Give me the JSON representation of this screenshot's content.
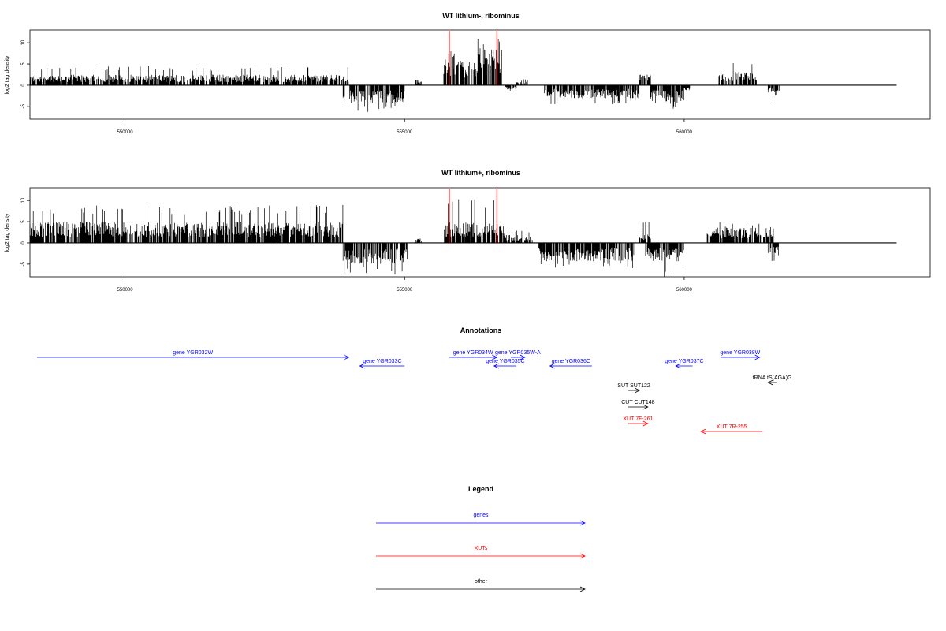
{
  "colors": {
    "gene": "#0000ff",
    "xut": "#ff0000",
    "other": "#000000",
    "marker": "#ff0000"
  },
  "chart_data": [
    {
      "type": "bar",
      "title": "WT lithium-, ribominus",
      "ylabel": "log2 tag density",
      "ylim": [
        -8,
        13
      ],
      "yticks": [
        -5,
        0,
        5,
        10
      ],
      "xlim": [
        548300,
        564400
      ],
      "xticks": [
        550000,
        555000,
        560000
      ],
      "xtick_labels": [
        "550000",
        "555000",
        "560000"
      ],
      "grid": false,
      "baseline_extent": [
        548300,
        563800
      ],
      "marker_positions": [
        555800,
        556650
      ],
      "segments": [
        {
          "start": 548300,
          "end": 554000,
          "strand": "+",
          "typical": 2.0,
          "peak": 4.5
        },
        {
          "start": 553900,
          "end": 555000,
          "strand": "-",
          "typical": -3.5,
          "peak": -6.5
        },
        {
          "start": 555200,
          "end": 555300,
          "strand": "+",
          "typical": 1.0,
          "peak": 1.5
        },
        {
          "start": 555700,
          "end": 555900,
          "strand": "+",
          "typical": 6.0,
          "peak": 10.0
        },
        {
          "start": 555900,
          "end": 556300,
          "strand": "+",
          "typical": 5.0,
          "peak": 9.0
        },
        {
          "start": 556300,
          "end": 556750,
          "strand": "+",
          "typical": 7.0,
          "peak": 11.0
        },
        {
          "start": 556800,
          "end": 557000,
          "strand": "-",
          "typical": -0.8,
          "peak": -1.5
        },
        {
          "start": 557000,
          "end": 557200,
          "strand": "+",
          "typical": 1.0,
          "peak": 1.5
        },
        {
          "start": 557500,
          "end": 558700,
          "strand": "-",
          "typical": -2.5,
          "peak": -4.5
        },
        {
          "start": 558700,
          "end": 559200,
          "strand": "-",
          "typical": -2.5,
          "peak": -4.5
        },
        {
          "start": 559200,
          "end": 559400,
          "strand": "+",
          "typical": 2.0,
          "peak": 3.0
        },
        {
          "start": 559400,
          "end": 560000,
          "strand": "-",
          "typical": -3.5,
          "peak": -6.5
        },
        {
          "start": 560000,
          "end": 560100,
          "strand": "-",
          "typical": -1.0,
          "peak": -2.0
        },
        {
          "start": 560600,
          "end": 561300,
          "strand": "+",
          "typical": 2.5,
          "peak": 5.5
        },
        {
          "start": 561500,
          "end": 561700,
          "strand": "-",
          "typical": -2.0,
          "peak": -4.5
        }
      ]
    },
    {
      "type": "bar",
      "title": "WT lithium+, ribominus",
      "ylabel": "log2 tag density",
      "ylim": [
        -8,
        13
      ],
      "yticks": [
        -5,
        0,
        5,
        10
      ],
      "xlim": [
        548300,
        564400
      ],
      "xticks": [
        550000,
        555000,
        560000
      ],
      "xtick_labels": [
        "550000",
        "555000",
        "560000"
      ],
      "grid": false,
      "baseline_extent": [
        548300,
        563800
      ],
      "marker_positions": [
        555800,
        556650
      ],
      "segments": [
        {
          "start": 548300,
          "end": 553900,
          "strand": "+",
          "typical": 4.0,
          "peak": 9.0
        },
        {
          "start": 553900,
          "end": 555050,
          "strand": "-",
          "typical": -4.0,
          "peak": -7.5
        },
        {
          "start": 555200,
          "end": 555300,
          "strand": "+",
          "typical": 1.0,
          "peak": 2.0
        },
        {
          "start": 555700,
          "end": 556800,
          "strand": "+",
          "typical": 4.0,
          "peak": 11.0
        },
        {
          "start": 556800,
          "end": 557300,
          "strand": "+",
          "typical": 1.5,
          "peak": 3.0
        },
        {
          "start": 557400,
          "end": 559100,
          "strand": "-",
          "typical": -3.5,
          "peak": -6.0
        },
        {
          "start": 559200,
          "end": 559400,
          "strand": "+",
          "typical": 2.0,
          "peak": 5.0
        },
        {
          "start": 559300,
          "end": 560000,
          "strand": "-",
          "typical": -3.5,
          "peak": -8.0
        },
        {
          "start": 560400,
          "end": 561600,
          "strand": "+",
          "typical": 3.0,
          "peak": 5.0
        },
        {
          "start": 561500,
          "end": 561700,
          "strand": "-",
          "typical": -2.5,
          "peak": -5.0
        }
      ]
    }
  ],
  "annotations": {
    "title": "Annotations",
    "xlim": [
      548300,
      564400
    ],
    "items": [
      {
        "label": "gene YGR032W",
        "kind": "gene",
        "start": 548300,
        "end": 554000,
        "strand": "+",
        "row": 0
      },
      {
        "label": "gene YGR033C",
        "kind": "gene",
        "start": 554200,
        "end": 555000,
        "strand": "-",
        "row": 1
      },
      {
        "label": "gene YGR034W",
        "kind": "gene",
        "start": 555800,
        "end": 556650,
        "strand": "+",
        "row": 0
      },
      {
        "label": "gene YGR035W-A",
        "kind": "gene",
        "start": 556900,
        "end": 557150,
        "strand": "+",
        "row": 0
      },
      {
        "label": "gene YGR035C",
        "kind": "gene",
        "start": 556600,
        "end": 557000,
        "strand": "-",
        "row": 1
      },
      {
        "label": "gene YGR036C",
        "kind": "gene",
        "start": 557600,
        "end": 558350,
        "strand": "-",
        "row": 1
      },
      {
        "label": "gene YGR037C",
        "kind": "gene",
        "start": 559850,
        "end": 560150,
        "strand": "-",
        "row": 1
      },
      {
        "label": "gene YGR038W",
        "kind": "gene",
        "start": 560650,
        "end": 561350,
        "strand": "+",
        "row": 0
      },
      {
        "label": "tRNA tS(AGA)G",
        "kind": "other",
        "start": 561500,
        "end": 561650,
        "strand": "-",
        "row": 2
      },
      {
        "label": "SUT SUT122",
        "kind": "other",
        "start": 559000,
        "end": 559200,
        "strand": "+",
        "row": 3
      },
      {
        "label": "CUT CUT148",
        "kind": "other",
        "start": 559000,
        "end": 559350,
        "strand": "+",
        "row": 4
      },
      {
        "label": "XUT 7F-261",
        "kind": "xut",
        "start": 559000,
        "end": 559350,
        "strand": "+",
        "row": 5
      },
      {
        "label": "XUT 7R-255",
        "kind": "xut",
        "start": 560300,
        "end": 561400,
        "strand": "-",
        "row": 6
      }
    ]
  },
  "legend": {
    "title": "Legend",
    "items": [
      {
        "label": "genes",
        "kind": "gene"
      },
      {
        "label": "XUTs",
        "kind": "xut"
      },
      {
        "label": "other",
        "kind": "other"
      }
    ]
  }
}
